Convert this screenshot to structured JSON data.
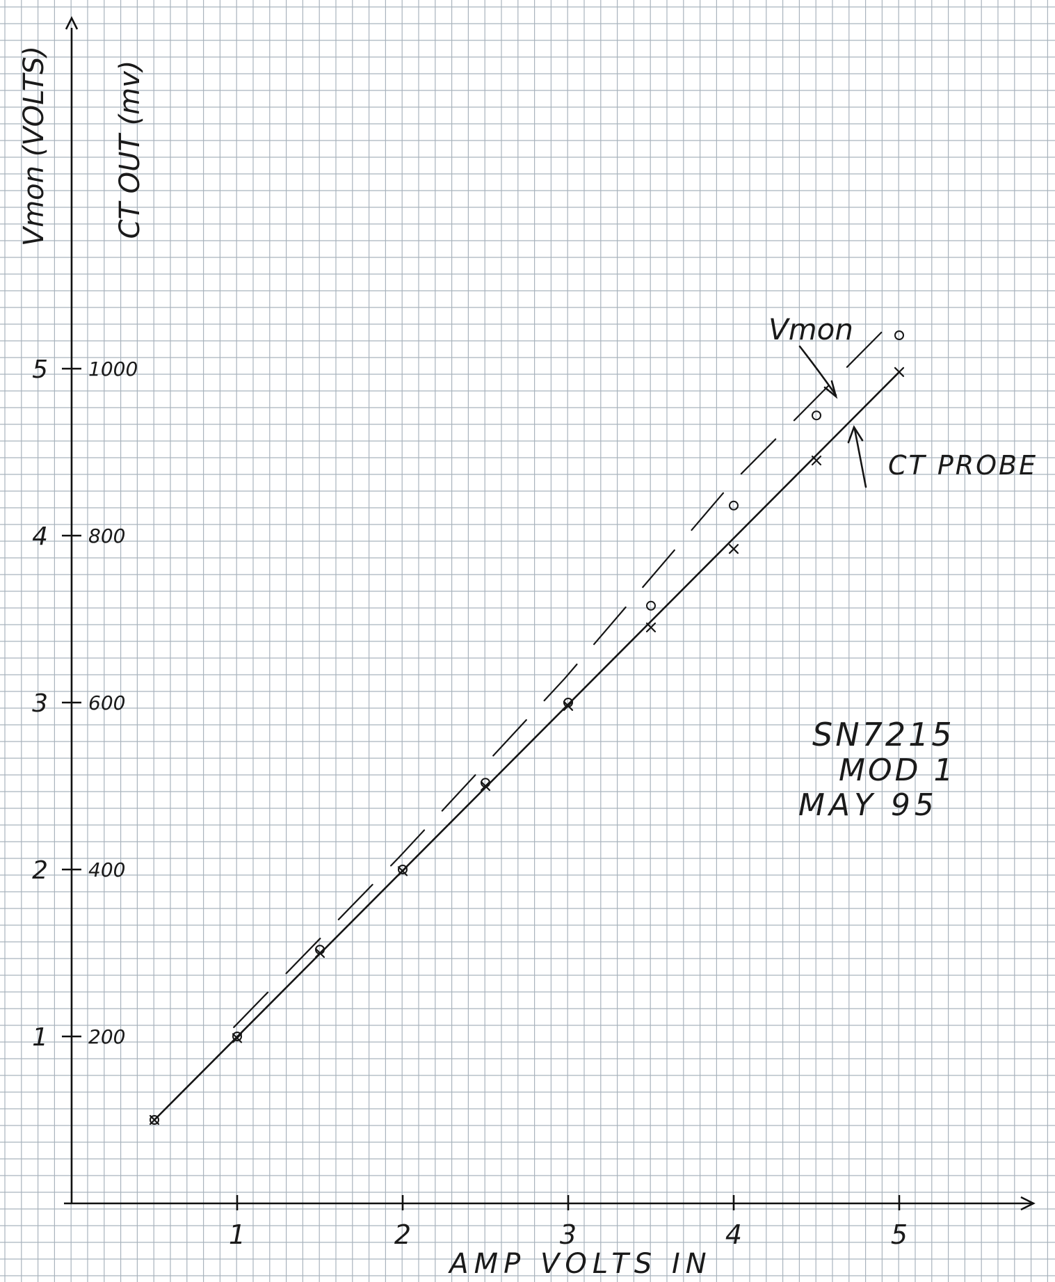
{
  "chart_data": {
    "type": "line",
    "xlabel": "AMP VOLTS IN",
    "x_ticks": [
      "1",
      "2",
      "3",
      "4",
      "5"
    ],
    "xlim": [
      0,
      5.8
    ],
    "y_left": {
      "label": "Vmon (VOLTS)",
      "ticks": [
        "1",
        "2",
        "3",
        "4",
        "5"
      ],
      "lim": [
        0,
        5.05
      ]
    },
    "y_right": {
      "label": "CT OUT (mv)",
      "ticks": [
        "200",
        "400",
        "600",
        "800",
        "1000"
      ],
      "lim": [
        0,
        1010
      ]
    },
    "series": [
      {
        "name": "Vmon",
        "marker": "o",
        "x": [
          0.5,
          1.0,
          1.5,
          2.0,
          2.5,
          3.0,
          3.5,
          4.0,
          4.5,
          5.0
        ],
        "y": [
          0.5,
          1.0,
          1.52,
          2.0,
          2.52,
          3.0,
          3.58,
          4.18,
          4.72,
          5.2
        ]
      },
      {
        "name": "CT PROBE",
        "marker": "x",
        "x": [
          0.5,
          1.0,
          1.5,
          2.0,
          2.5,
          3.0,
          3.5,
          4.0,
          4.5,
          5.0
        ],
        "y": [
          0.5,
          0.99,
          1.5,
          1.99,
          2.5,
          2.98,
          3.45,
          3.92,
          4.45,
          4.98
        ]
      }
    ],
    "annotations": [
      "Vmon",
      "CT PROBE"
    ],
    "note_lines": [
      "SN7215",
      "MOD 1",
      "MAY 95"
    ],
    "grid": true,
    "legend": "none"
  }
}
